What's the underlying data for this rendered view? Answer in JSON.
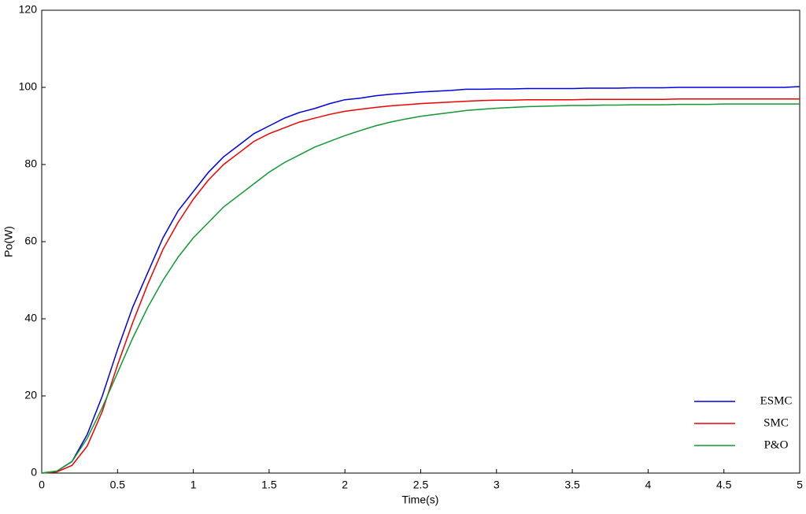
{
  "chart_data": {
    "type": "line",
    "xlabel": "Time(s)",
    "ylabel": "Po(W)",
    "x": [
      0,
      0.1,
      0.2,
      0.3,
      0.4,
      0.5,
      0.6,
      0.7,
      0.8,
      0.9,
      1,
      1.1,
      1.2,
      1.3,
      1.4,
      1.5,
      1.6,
      1.7,
      1.8,
      1.9,
      2,
      2.1,
      2.2,
      2.3,
      2.4,
      2.5,
      2.6,
      2.7,
      2.8,
      2.9,
      3,
      3.1,
      3.2,
      3.3,
      3.4,
      3.5,
      3.6,
      3.7,
      3.8,
      3.9,
      4,
      4.1,
      4.2,
      4.3,
      4.4,
      4.5,
      4.6,
      4.7,
      4.8,
      4.9,
      5
    ],
    "series": [
      {
        "name": "ESMC",
        "color": "#0000dd",
        "values": [
          0,
          0.5,
          3,
          10,
          20,
          32,
          43,
          52,
          61,
          68,
          73,
          78,
          82,
          85,
          88,
          90,
          92,
          93.5,
          94.5,
          95.8,
          96.8,
          97.2,
          97.8,
          98.2,
          98.5,
          98.8,
          99,
          99.2,
          99.5,
          99.5,
          99.6,
          99.6,
          99.7,
          99.7,
          99.7,
          99.7,
          99.8,
          99.8,
          99.8,
          99.9,
          99.9,
          99.9,
          100,
          100,
          100,
          100,
          100,
          100,
          100,
          100,
          100.2
        ]
      },
      {
        "name": "SMC",
        "color": "#ee0000",
        "values": [
          0,
          0.3,
          2,
          7,
          16,
          28,
          39,
          49,
          58,
          65,
          71,
          76,
          80,
          83,
          86,
          88,
          89.5,
          91,
          92,
          93,
          93.8,
          94.3,
          94.8,
          95.2,
          95.5,
          95.8,
          96,
          96.2,
          96.4,
          96.6,
          96.7,
          96.7,
          96.8,
          96.8,
          96.8,
          96.8,
          96.9,
          96.9,
          96.9,
          96.9,
          96.9,
          96.9,
          97,
          97,
          97,
          97,
          97,
          97,
          97,
          97,
          97
        ]
      },
      {
        "name": "P&O",
        "color": "#119933",
        "values": [
          0,
          0.5,
          3,
          9,
          17,
          26,
          35,
          43,
          50,
          56,
          61,
          65,
          69,
          72,
          75,
          78,
          80.5,
          82.5,
          84.5,
          86,
          87.5,
          88.8,
          90,
          91,
          91.8,
          92.5,
          93,
          93.5,
          94,
          94.3,
          94.6,
          94.8,
          95,
          95.1,
          95.2,
          95.3,
          95.3,
          95.4,
          95.4,
          95.5,
          95.5,
          95.5,
          95.6,
          95.6,
          95.6,
          95.7,
          95.7,
          95.7,
          95.7,
          95.7,
          95.7
        ]
      }
    ],
    "xlim": [
      0,
      5
    ],
    "xticks": [
      0,
      0.5,
      1,
      1.5,
      2,
      2.5,
      3,
      3.5,
      4,
      4.5,
      5
    ],
    "ylim": [
      0,
      120
    ],
    "yticks": [
      0,
      20,
      40,
      60,
      80,
      100,
      120
    ],
    "legend": "lower right"
  }
}
